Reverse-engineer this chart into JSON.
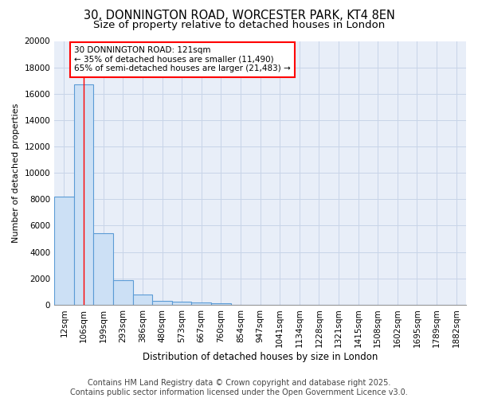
{
  "title1": "30, DONNINGTON ROAD, WORCESTER PARK, KT4 8EN",
  "title2": "Size of property relative to detached houses in London",
  "xlabel": "Distribution of detached houses by size in London",
  "ylabel": "Number of detached properties",
  "categories": [
    "12sqm",
    "106sqm",
    "199sqm",
    "293sqm",
    "386sqm",
    "480sqm",
    "573sqm",
    "667sqm",
    "760sqm",
    "854sqm",
    "947sqm",
    "1041sqm",
    "1134sqm",
    "1228sqm",
    "1321sqm",
    "1415sqm",
    "1508sqm",
    "1602sqm",
    "1695sqm",
    "1789sqm",
    "1882sqm"
  ],
  "values": [
    8200,
    16700,
    5400,
    1850,
    750,
    310,
    230,
    155,
    100,
    0,
    0,
    0,
    0,
    0,
    0,
    0,
    0,
    0,
    0,
    0,
    0
  ],
  "bar_color": "#cce0f5",
  "bar_edge_color": "#5b9bd5",
  "red_line_x": 1,
  "annotation_line1": "30 DONNINGTON ROAD: 121sqm",
  "annotation_line2": "← 35% of detached houses are smaller (11,490)",
  "annotation_line3": "65% of semi-detached houses are larger (21,483) →",
  "ylim": [
    0,
    20000
  ],
  "yticks": [
    0,
    2000,
    4000,
    6000,
    8000,
    10000,
    12000,
    14000,
    16000,
    18000,
    20000
  ],
  "grid_color": "#c8d4e8",
  "background_color": "#e8eef8",
  "footer1": "Contains HM Land Registry data © Crown copyright and database right 2025.",
  "footer2": "Contains public sector information licensed under the Open Government Licence v3.0.",
  "title1_fontsize": 10.5,
  "title2_fontsize": 9.5,
  "xlabel_fontsize": 8.5,
  "ylabel_fontsize": 8,
  "tick_fontsize": 7.5,
  "footer_fontsize": 7
}
